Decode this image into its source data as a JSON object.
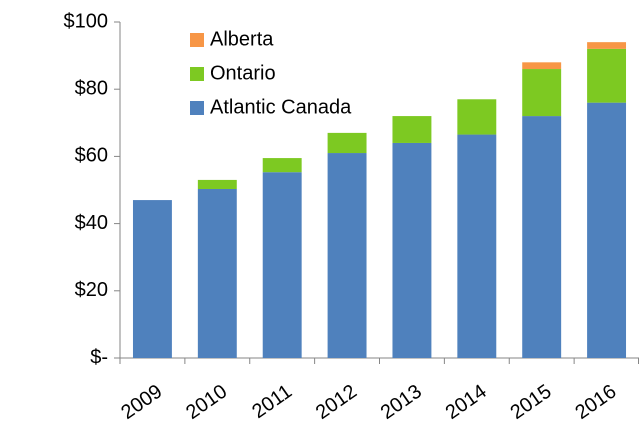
{
  "chart_data": {
    "type": "stacked_bar",
    "categories": [
      "2009",
      "2010",
      "2011",
      "2012",
      "2013",
      "2014",
      "2015",
      "2016"
    ],
    "series": [
      {
        "name": "Atlantic Canada",
        "color": "#4f81bd",
        "values": [
          47,
          50.3,
          55.3,
          61,
          64,
          66.5,
          72,
          76
        ]
      },
      {
        "name": "Ontario",
        "color": "#7dc922",
        "values": [
          0,
          2.7,
          4.2,
          6,
          8,
          10.5,
          14,
          16
        ]
      },
      {
        "name": "Alberta",
        "color": "#f79646",
        "values": [
          0,
          0,
          0,
          0,
          0,
          0,
          2,
          2
        ]
      }
    ],
    "ylim": [
      0,
      100
    ],
    "yticks": [
      {
        "value": 0,
        "label": "$-"
      },
      {
        "value": 20,
        "label": "$20"
      },
      {
        "value": 40,
        "label": "$40"
      },
      {
        "value": 60,
        "label": "$60"
      },
      {
        "value": 80,
        "label": "$80"
      },
      {
        "value": 100,
        "label": "$100"
      }
    ],
    "grid": false,
    "legend": "upper left"
  }
}
